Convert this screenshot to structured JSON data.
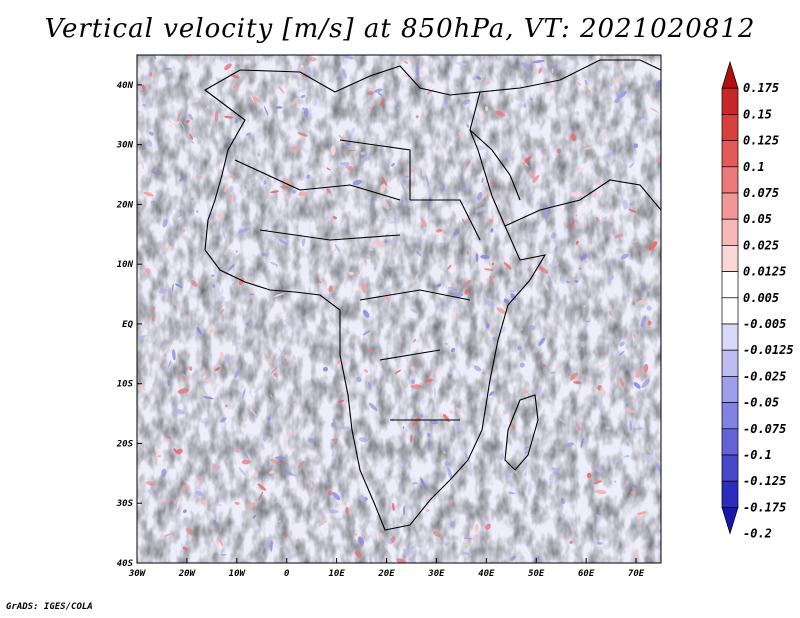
{
  "title": "Vertical velocity [m/s] at 850hPa, VT: 2021020812",
  "credit": "GrADS: IGES/COLA",
  "map": {
    "lon_range": [
      -30,
      75
    ],
    "lat_range": [
      -40,
      45
    ],
    "lon_ticks": [
      "30W",
      "20W",
      "10W",
      "0",
      "10E",
      "20E",
      "30E",
      "40E",
      "50E",
      "60E",
      "70E"
    ],
    "lat_ticks": [
      "40N",
      "30N",
      "20N",
      "10N",
      "EQ",
      "10S",
      "20S",
      "30S",
      "40S"
    ]
  },
  "colorbar": {
    "labels": [
      "0.175",
      "0.15",
      "0.125",
      "0.1",
      "0.075",
      "0.05",
      "0.025",
      "0.0125",
      "0.005",
      "-0.005",
      "-0.0125",
      "-0.025",
      "-0.05",
      "-0.075",
      "-0.1",
      "-0.125",
      "-0.175",
      "-0.2"
    ],
    "colors": [
      "#b01010",
      "#c82828",
      "#d84040",
      "#e45a5a",
      "#ec7a7a",
      "#f29898",
      "#f6b8b8",
      "#fad6d6",
      "#ffffff",
      "#ffffff",
      "#d8d8f8",
      "#bcbcf2",
      "#9e9eea",
      "#8282e2",
      "#6464d8",
      "#4848cc",
      "#2c2cbe",
      "#1818aa"
    ]
  }
}
